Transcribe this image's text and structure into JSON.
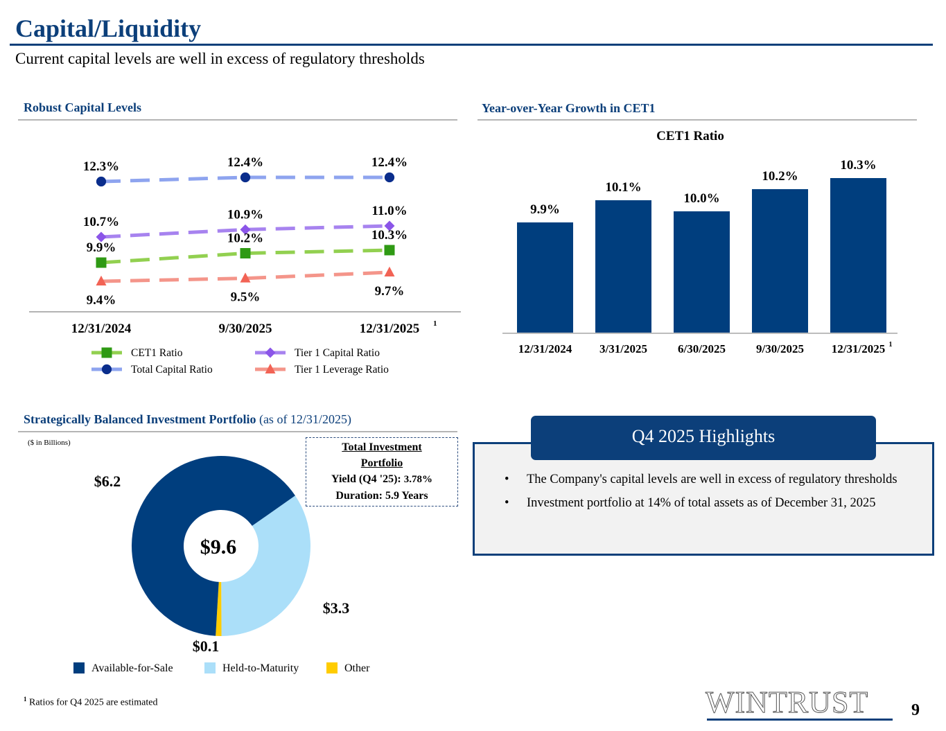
{
  "header": {
    "title": "Capital/Liquidity",
    "subtitle": "Current capital levels are well in excess of regulatory thresholds"
  },
  "sections": {
    "capital_levels": "Robust Capital Levels",
    "cet1_growth": "Year-over-Year Growth in CET1",
    "portfolio_bold": "Strategically Balanced Investment Portfolio",
    "portfolio_normal": " (as of 12/31/2025)"
  },
  "chart_data": [
    {
      "type": "line",
      "title": "Robust Capital Levels",
      "categories": [
        "12/31/2024",
        "9/30/2025",
        "12/31/2025"
      ],
      "category_footnotes": [
        "",
        "",
        "1"
      ],
      "series": [
        {
          "name": "Total Capital Ratio",
          "values": [
            12.3,
            12.4,
            12.4
          ],
          "labels": [
            "12.3%",
            "12.4%",
            "12.4%"
          ],
          "color": "#8ea4ef",
          "marker": "circle",
          "marker_color": "#0a2d8c",
          "label_pos": "above"
        },
        {
          "name": "Tier 1 Capital Ratio",
          "values": [
            10.7,
            10.9,
            11.0
          ],
          "labels": [
            "10.7%",
            "10.9%",
            "11.0%"
          ],
          "color": "#a783ef",
          "marker": "diamond",
          "marker_color": "#8b55e8",
          "label_pos": "above"
        },
        {
          "name": "CET1 Ratio",
          "values": [
            9.9,
            10.2,
            10.3
          ],
          "labels": [
            "9.9%",
            "10.2%",
            "10.3%"
          ],
          "color": "#92d050",
          "marker": "square",
          "marker_color": "#2f9a14",
          "label_pos": "above"
        },
        {
          "name": "Tier 1 Leverage Ratio",
          "values": [
            9.4,
            9.5,
            9.7
          ],
          "labels": [
            "9.4%",
            "9.5%",
            "9.7%"
          ],
          "color": "#f4958a",
          "marker": "triangle",
          "marker_color": "#f26355",
          "label_pos": "below"
        }
      ],
      "legend": [
        {
          "name": "CET1 Ratio",
          "marker": "square"
        },
        {
          "name": "Tier 1 Capital Ratio",
          "marker": "diamond"
        },
        {
          "name": "Total Capital Ratio",
          "marker": "circle"
        },
        {
          "name": "Tier 1 Leverage Ratio",
          "marker": "triangle"
        }
      ],
      "legend_position": "bottom",
      "grid": false
    },
    {
      "type": "bar",
      "title": "CET1 Ratio",
      "categories": [
        "12/31/2024",
        "3/31/2025",
        "6/30/2025",
        "9/30/2025",
        "12/31/2025"
      ],
      "category_footnotes": [
        "",
        "",
        "",
        "",
        "1"
      ],
      "values": [
        9.9,
        10.1,
        10.0,
        10.2,
        10.3
      ],
      "labels": [
        "9.9%",
        "10.1%",
        "10.0%",
        "10.2%",
        "10.3%"
      ],
      "color": "#003e7e",
      "grid": false
    },
    {
      "type": "pie",
      "title": "Strategically Balanced Investment Portfolio",
      "unit_note": "($ in Billions)",
      "center_label": "$9.6",
      "total": 9.6,
      "slices": [
        {
          "name": "Available-for-Sale",
          "value": 6.2,
          "label": "$6.2",
          "color": "#003e7e"
        },
        {
          "name": "Held-to-Maturity",
          "value": 3.3,
          "label": "$3.3",
          "color": "#abdff9"
        },
        {
          "name": "Other",
          "value": 0.1,
          "label": "$0.1",
          "color": "#ffcc00"
        }
      ],
      "legend_position": "bottom"
    }
  ],
  "portfolio_box": {
    "title_line1": "Total Investment ",
    "title_line2": "Portfolio",
    "yield_label": "Yield (Q4 '25): ",
    "yield_value": "3.78%",
    "duration": "Duration: 5.9 Years"
  },
  "highlights": {
    "title": "Q4 2025 Highlights",
    "bullets": [
      "The Company's capital levels are well in excess of regulatory thresholds",
      "Investment portfolio at 14% of total assets as of December 31, 2025"
    ]
  },
  "footer": {
    "footnote_mark": "1",
    "footnote": " Ratios for Q4 2025 are estimated",
    "logo": "WINTRUST",
    "page_number": "9"
  }
}
